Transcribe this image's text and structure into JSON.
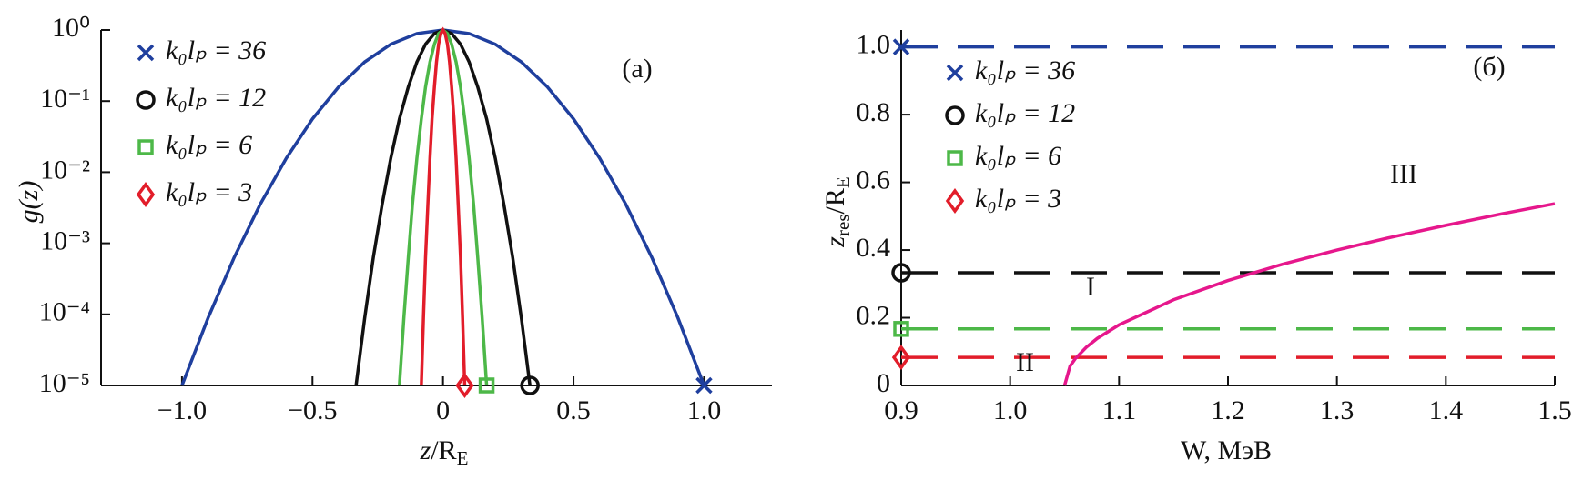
{
  "chart_data": [
    {
      "type": "line",
      "log_y": true,
      "x_label": [
        "z",
        "/R",
        "E"
      ],
      "y_label": "g(z)",
      "xlim": [
        -1.31,
        1.26
      ],
      "ylim": [
        1e-05,
        1
      ],
      "xticks": [
        {
          "value": -1,
          "label": "−1.0"
        },
        {
          "value": -0.5,
          "label": "−0.5"
        },
        0,
        0.5,
        {
          "value": 1,
          "label": "1.0"
        }
      ],
      "yticks": [
        {
          "value": 1,
          "label": "10⁰"
        },
        {
          "value": 0.1,
          "label": "10⁻¹"
        },
        {
          "value": 0.01,
          "label": "10⁻²"
        },
        {
          "value": 0.001,
          "label": "10⁻³"
        },
        {
          "value": 0.0001,
          "label": "10⁻⁴"
        },
        {
          "value": 1e-05,
          "label": "10⁻⁵"
        }
      ],
      "annotations": [
        "(a)"
      ],
      "series": [
        {
          "name": "k₀lₚ = 36",
          "color": "#1f3f9e",
          "marker": "x",
          "marker_at": "end",
          "x": [
            -1,
            -0.9,
            -0.8,
            -0.7,
            -0.6,
            -0.5,
            -0.4,
            -0.3,
            -0.2,
            -0.1,
            0,
            0.1,
            0.2,
            0.3,
            0.4,
            0.5,
            0.6,
            0.7,
            0.8,
            0.9,
            1
          ],
          "values": [
            1e-05,
            8.91e-05,
            0.000631,
            0.00355,
            0.0158,
            0.0562,
            0.158,
            0.355,
            0.631,
            0.891,
            1,
            0.891,
            0.631,
            0.355,
            0.158,
            0.0562,
            0.0158,
            0.00355,
            0.000631,
            8.91e-05,
            1e-05
          ]
        },
        {
          "name": "k₀lₚ = 12",
          "color": "#111111",
          "marker": "o",
          "marker_at": "end",
          "x": [
            -0.333,
            -0.3,
            -0.267,
            -0.233,
            -0.2,
            -0.167,
            -0.133,
            -0.1,
            -0.067,
            -0.033,
            0,
            0.033,
            0.067,
            0.1,
            0.133,
            0.167,
            0.2,
            0.233,
            0.267,
            0.3,
            0.333
          ],
          "values": [
            1e-05,
            8.91e-05,
            0.000631,
            0.00355,
            0.0158,
            0.0562,
            0.158,
            0.355,
            0.631,
            0.891,
            1,
            0.891,
            0.631,
            0.355,
            0.158,
            0.0562,
            0.0158,
            0.00355,
            0.000631,
            8.91e-05,
            1e-05
          ]
        },
        {
          "name": "k₀lₚ = 6",
          "color": "#4db848",
          "marker": "s",
          "marker_at": "end",
          "x": [
            -0.167,
            -0.15,
            -0.133,
            -0.117,
            -0.1,
            -0.083,
            -0.067,
            -0.05,
            -0.033,
            -0.017,
            0,
            0.017,
            0.033,
            0.05,
            0.067,
            0.083,
            0.1,
            0.117,
            0.133,
            0.15,
            0.167
          ],
          "values": [
            1e-05,
            8.91e-05,
            0.000631,
            0.00355,
            0.0158,
            0.0562,
            0.158,
            0.355,
            0.631,
            0.891,
            1,
            0.891,
            0.631,
            0.355,
            0.158,
            0.0562,
            0.0158,
            0.00355,
            0.000631,
            8.91e-05,
            1e-05
          ]
        },
        {
          "name": "k₀lₚ = 3",
          "color": "#e21d2a",
          "marker": "d",
          "marker_at": "end",
          "x": [
            -0.083,
            -0.075,
            -0.067,
            -0.058,
            -0.05,
            -0.042,
            -0.033,
            -0.025,
            -0.017,
            -0.008,
            0,
            0.008,
            0.017,
            0.025,
            0.033,
            0.042,
            0.05,
            0.058,
            0.067,
            0.075,
            0.083
          ],
          "values": [
            1e-05,
            8.91e-05,
            0.000631,
            0.00355,
            0.0158,
            0.0562,
            0.158,
            0.355,
            0.631,
            0.891,
            1,
            0.891,
            0.631,
            0.355,
            0.158,
            0.0562,
            0.0158,
            0.00355,
            0.000631,
            8.91e-05,
            1e-05
          ]
        }
      ]
    },
    {
      "type": "line",
      "log_y": false,
      "x_label": [
        "W, МэВ"
      ],
      "y_label": [
        "z",
        "res",
        "/R",
        "E"
      ],
      "xlim": [
        0.9,
        1.5
      ],
      "ylim": [
        0,
        1.05
      ],
      "xticks": [
        0.9,
        {
          "value": 1,
          "label": "1.0"
        },
        1.1,
        1.2,
        1.3,
        1.4,
        1.5
      ],
      "yticks": [
        0,
        0.2,
        0.4,
        0.6,
        0.8,
        {
          "value": 1,
          "label": "1.0"
        }
      ],
      "annotations": [
        "(б)",
        "III",
        "I",
        "II"
      ],
      "series": [
        {
          "name": "k₀lₚ = 36",
          "color": "#1f3f9e",
          "marker": "x",
          "marker_at": "start",
          "dashed": true,
          "x": [
            0.9,
            1.5
          ],
          "values": [
            1,
            1
          ]
        },
        {
          "name": "k₀lₚ = 12",
          "color": "#111111",
          "marker": "o",
          "marker_at": "start",
          "dashed": true,
          "x": [
            0.9,
            1.5
          ],
          "values": [
            0.333,
            0.333
          ]
        },
        {
          "name": "k₀lₚ = 6",
          "color": "#4db848",
          "marker": "s",
          "marker_at": "start",
          "dashed": true,
          "x": [
            0.9,
            1.5
          ],
          "values": [
            0.167,
            0.167
          ]
        },
        {
          "name": "k₀lₚ = 3",
          "color": "#e21d2a",
          "marker": "d",
          "marker_at": "start",
          "dashed": true,
          "x": [
            0.9,
            1.5
          ],
          "values": [
            0.083,
            0.083
          ]
        },
        {
          "color": "#e6178c",
          "x": [
            1.05,
            1.055,
            1.06,
            1.07,
            1.08,
            1.1,
            1.15,
            1.2,
            1.25,
            1.3,
            1.35,
            1.4,
            1.45,
            1.5
          ],
          "values": [
            0,
            0.057,
            0.08,
            0.113,
            0.139,
            0.179,
            0.253,
            0.31,
            0.358,
            0.4,
            0.438,
            0.473,
            0.506,
            0.537
          ]
        }
      ]
    }
  ]
}
